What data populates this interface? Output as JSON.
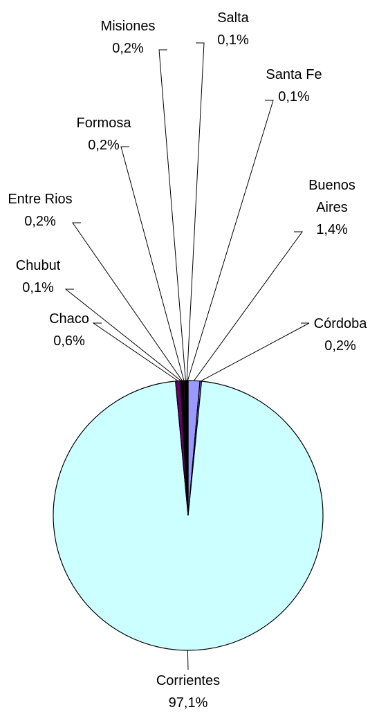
{
  "chart_data": {
    "type": "pie",
    "categories": [
      "Buenos Aires",
      "Córdoba",
      "Corrientes",
      "Chaco",
      "Chubut",
      "Entre Rios",
      "Formosa",
      "Misiones",
      "Salta",
      "Santa Fe"
    ],
    "values": [
      1.4,
      0.2,
      97.1,
      0.6,
      0.1,
      0.2,
      0.2,
      0.2,
      0.1,
      0.1
    ],
    "value_labels": [
      "1,4%",
      "0,2%",
      "97,1%",
      "0,6%",
      "0,1%",
      "0,2%",
      "0,2%",
      "0,2%",
      "0,1%",
      "0,1%"
    ],
    "colors": [
      "#9999ff",
      "#6666cc",
      "#ccffff",
      "#660066",
      "#1a1a1a",
      "#000000",
      "#1a1a1a",
      "#000000",
      "#1a1a1a",
      "#000000"
    ]
  }
}
